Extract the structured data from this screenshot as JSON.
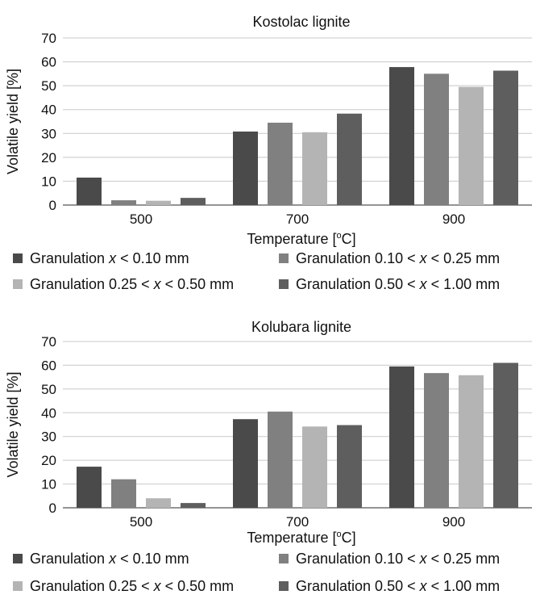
{
  "chart_data": [
    {
      "type": "bar",
      "title": "Kostolac lignite",
      "xlabel_main": "Temperature [",
      "xlabel_sup": "o",
      "xlabel_end": "C]",
      "ylabel": "Volatile yield [%]",
      "categories": [
        "500",
        "700",
        "900"
      ],
      "ylim": [
        0,
        70
      ],
      "yticks": [
        "0",
        "10",
        "20",
        "30",
        "40",
        "50",
        "60",
        "70"
      ],
      "grid": true,
      "legend_position": "bottom",
      "series": [
        {
          "name": "Granulation x < 0.10 mm",
          "color": "#4a4a4a",
          "values": [
            11.5,
            30.8,
            57.8
          ]
        },
        {
          "name": "Granulation 0.10 < x < 0.25 mm",
          "color": "#808080",
          "values": [
            2.0,
            34.5,
            55.0
          ]
        },
        {
          "name": "Granulation 0.25 < x < 0.50 mm",
          "color": "#b4b4b4",
          "values": [
            1.8,
            30.5,
            49.5
          ]
        },
        {
          "name": "Granulation 0.50 < x < 1.00 mm",
          "color": "#5e5e5e",
          "values": [
            3.0,
            38.3,
            56.3
          ]
        }
      ]
    },
    {
      "type": "bar",
      "title": "Kolubara lignite",
      "xlabel_main": "Temperature [",
      "xlabel_sup": "o",
      "xlabel_end": "C]",
      "ylabel": "Volatile yield [%]",
      "categories": [
        "500",
        "700",
        "900"
      ],
      "ylim": [
        0,
        70
      ],
      "yticks": [
        "0",
        "10",
        "20",
        "30",
        "40",
        "50",
        "60",
        "70"
      ],
      "grid": true,
      "legend_position": "bottom",
      "series": [
        {
          "name": "Granulation x < 0.10 mm",
          "color": "#4a4a4a",
          "values": [
            17.3,
            37.3,
            59.5
          ]
        },
        {
          "name": "Granulation 0.10 < x < 0.25 mm",
          "color": "#808080",
          "values": [
            12.0,
            40.5,
            56.7
          ]
        },
        {
          "name": "Granulation 0.25 < x < 0.50 mm",
          "color": "#b4b4b4",
          "values": [
            4.0,
            34.2,
            55.8
          ]
        },
        {
          "name": "Granulation 0.50 < x < 1.00 mm",
          "color": "#5e5e5e",
          "values": [
            2.0,
            34.8,
            61.0
          ]
        }
      ]
    }
  ]
}
